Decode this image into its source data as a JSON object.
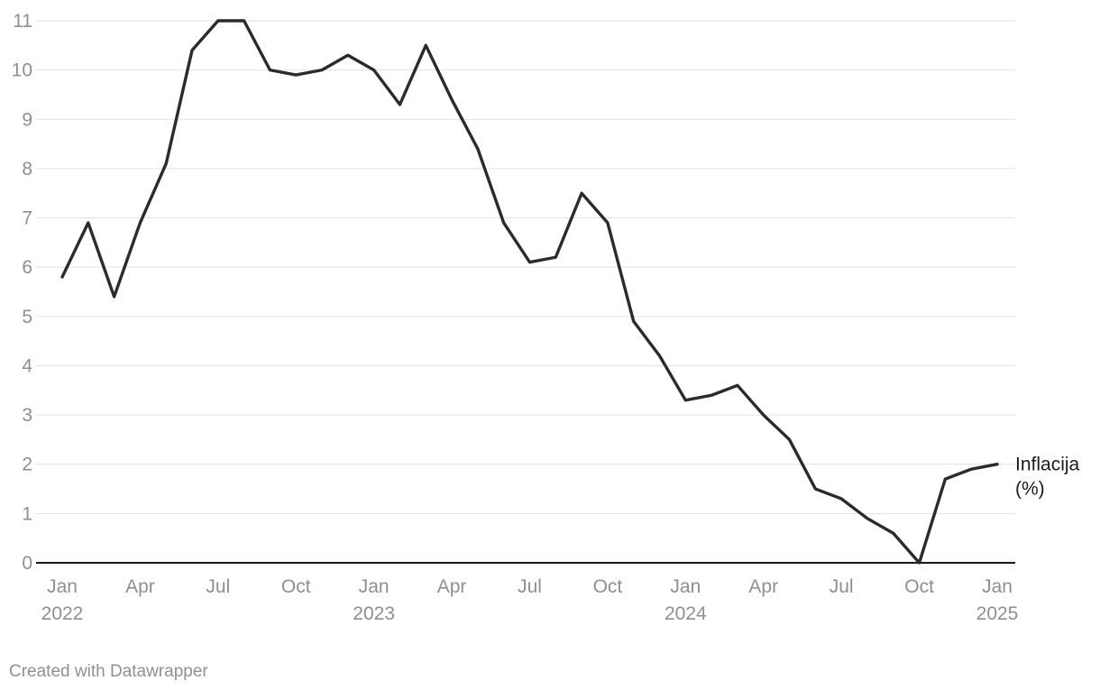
{
  "chart_data": {
    "type": "line",
    "title": "",
    "xlabel": "",
    "ylabel": "",
    "ylim": [
      0,
      11
    ],
    "yticks": [
      0,
      1,
      2,
      3,
      4,
      5,
      6,
      7,
      8,
      9,
      10,
      11
    ],
    "grid": true,
    "x_range": [
      "2022-01",
      "2025-01"
    ],
    "x_tick_labels": [
      {
        "month": "Jan",
        "year": "2022",
        "x": "2022-01"
      },
      {
        "month": "Apr",
        "year": "",
        "x": "2022-04"
      },
      {
        "month": "Jul",
        "year": "",
        "x": "2022-07"
      },
      {
        "month": "Oct",
        "year": "",
        "x": "2022-10"
      },
      {
        "month": "Jan",
        "year": "2023",
        "x": "2023-01"
      },
      {
        "month": "Apr",
        "year": "",
        "x": "2023-04"
      },
      {
        "month": "Jul",
        "year": "",
        "x": "2023-07"
      },
      {
        "month": "Oct",
        "year": "",
        "x": "2023-10"
      },
      {
        "month": "Jan",
        "year": "2024",
        "x": "2024-01"
      },
      {
        "month": "Apr",
        "year": "",
        "x": "2024-04"
      },
      {
        "month": "Jul",
        "year": "",
        "x": "2024-07"
      },
      {
        "month": "Oct",
        "year": "",
        "x": "2024-10"
      },
      {
        "month": "Jan",
        "year": "2025",
        "x": "2025-01"
      }
    ],
    "series": [
      {
        "name": "Inflacija (%)",
        "label_lines": [
          "Inflacija",
          "(%)"
        ],
        "color": "#2b2b2b",
        "x": [
          "2022-01",
          "2022-02",
          "2022-03",
          "2022-04",
          "2022-05",
          "2022-06",
          "2022-07",
          "2022-08",
          "2022-09",
          "2022-10",
          "2022-11",
          "2022-12",
          "2023-01",
          "2023-02",
          "2023-03",
          "2023-04",
          "2023-05",
          "2023-06",
          "2023-07",
          "2023-08",
          "2023-09",
          "2023-10",
          "2023-11",
          "2023-12",
          "2024-01",
          "2024-02",
          "2024-03",
          "2024-04",
          "2024-05",
          "2024-06",
          "2024-07",
          "2024-08",
          "2024-09",
          "2024-10",
          "2024-11",
          "2024-12",
          "2025-01"
        ],
        "values": [
          5.8,
          6.9,
          5.4,
          6.9,
          8.1,
          10.4,
          11.0,
          11.0,
          10.0,
          9.9,
          10.0,
          10.3,
          10.0,
          9.3,
          10.5,
          9.4,
          8.4,
          6.9,
          6.1,
          6.2,
          7.5,
          6.9,
          4.9,
          4.2,
          3.3,
          3.4,
          3.6,
          3.0,
          2.5,
          1.5,
          1.3,
          0.9,
          0.6,
          0.0,
          1.7,
          1.9,
          2.0
        ]
      }
    ]
  },
  "footer": {
    "credit": "Created with Datawrapper"
  },
  "colors": {
    "line": "#2b2b2b",
    "grid": "#e2e2e2",
    "baseline": "#1a1a1a",
    "tick_label": "#8f8f8f",
    "series_label": "#1a1a1a"
  }
}
